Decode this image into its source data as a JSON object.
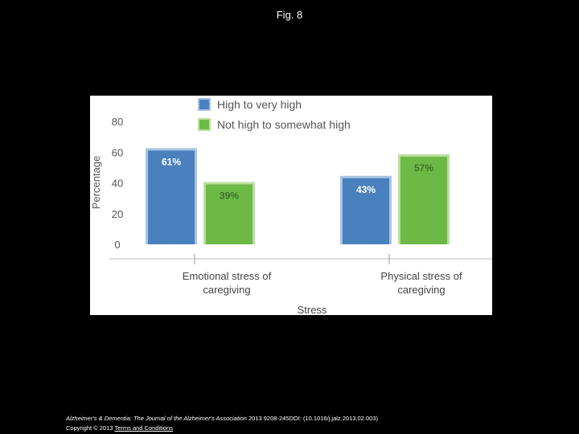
{
  "figure": {
    "title": "Fig. 8"
  },
  "footer": {
    "journal": "Alzheimer's & Dementia: The Journal of the Alzheimer's Association",
    "citation": " 2013 9208-245DOI: (10.1016/j.jalz.2013.02.003)",
    "copyright": "Copyright © 2013 ",
    "terms_link": "Terms and Conditions"
  },
  "colors": {
    "series_1": "#4a80bd",
    "series_1_outline": "#a9c4e4",
    "series_2": "#6cba45",
    "series_2_outline": "#bcdf9e",
    "bar_label_1": "#ffffff",
    "bar_label_2": "#3f6e2a"
  },
  "chart_data": {
    "type": "bar",
    "title": "",
    "xlabel": "Stress",
    "ylabel": "Percentage",
    "ylim": [
      0,
      80
    ],
    "yticks": [
      "0",
      "20",
      "40",
      "60",
      "80"
    ],
    "categories": [
      "Emotional stress of caregiving",
      "Physical stress of caregiving"
    ],
    "category_lines": [
      [
        "Emotional stress of",
        "caregiving"
      ],
      [
        "Physical stress of",
        "caregiving"
      ]
    ],
    "series": [
      {
        "name": "High to very high",
        "values": [
          61,
          43
        ],
        "labels": [
          "61%",
          "43%"
        ]
      },
      {
        "name": "Not high to somewhat high",
        "values": [
          39,
          57
        ],
        "labels": [
          "39%",
          "57%"
        ]
      }
    ],
    "legend": "top-left",
    "grid": false
  }
}
